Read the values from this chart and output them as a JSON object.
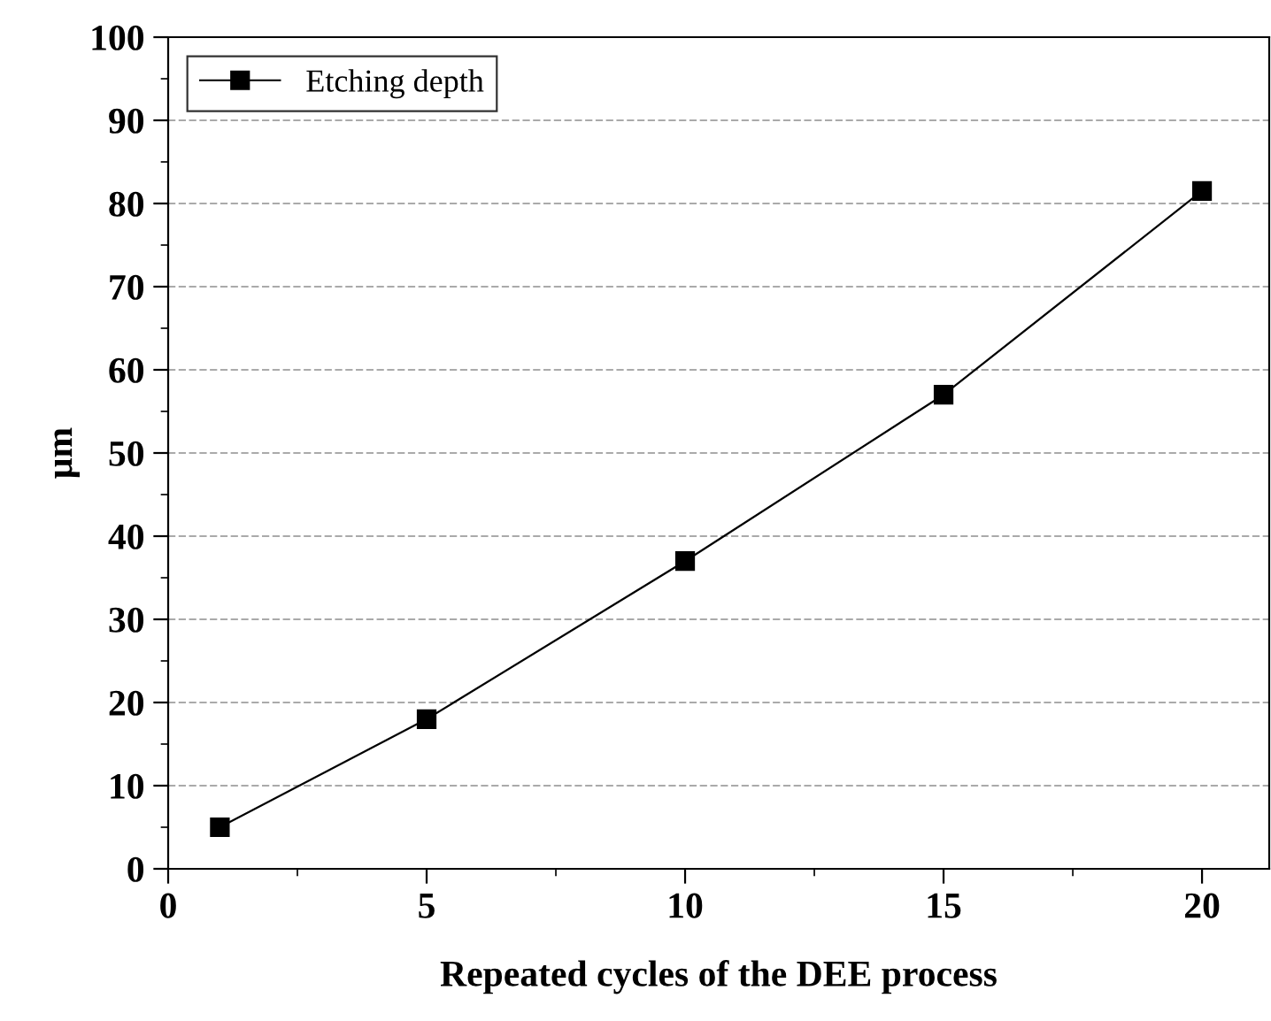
{
  "chart_data": {
    "type": "line",
    "xlabel": "Repeated cycles of the DEE process",
    "ylabel": "μm",
    "x": [
      1,
      5,
      10,
      15,
      20
    ],
    "series": [
      {
        "name": "Etching depth",
        "color": "#000000",
        "values": [
          5,
          18,
          37,
          57,
          81.5
        ]
      }
    ],
    "xlim": [
      0,
      21.3
    ],
    "xticks": [
      0,
      5,
      10,
      15,
      20
    ],
    "ylim": [
      0,
      100
    ],
    "yticks": [
      0,
      10,
      20,
      30,
      40,
      50,
      60,
      70,
      80,
      90,
      100
    ],
    "grid": "y",
    "legend": "top left",
    "marker": "square",
    "line_style": "solid"
  }
}
